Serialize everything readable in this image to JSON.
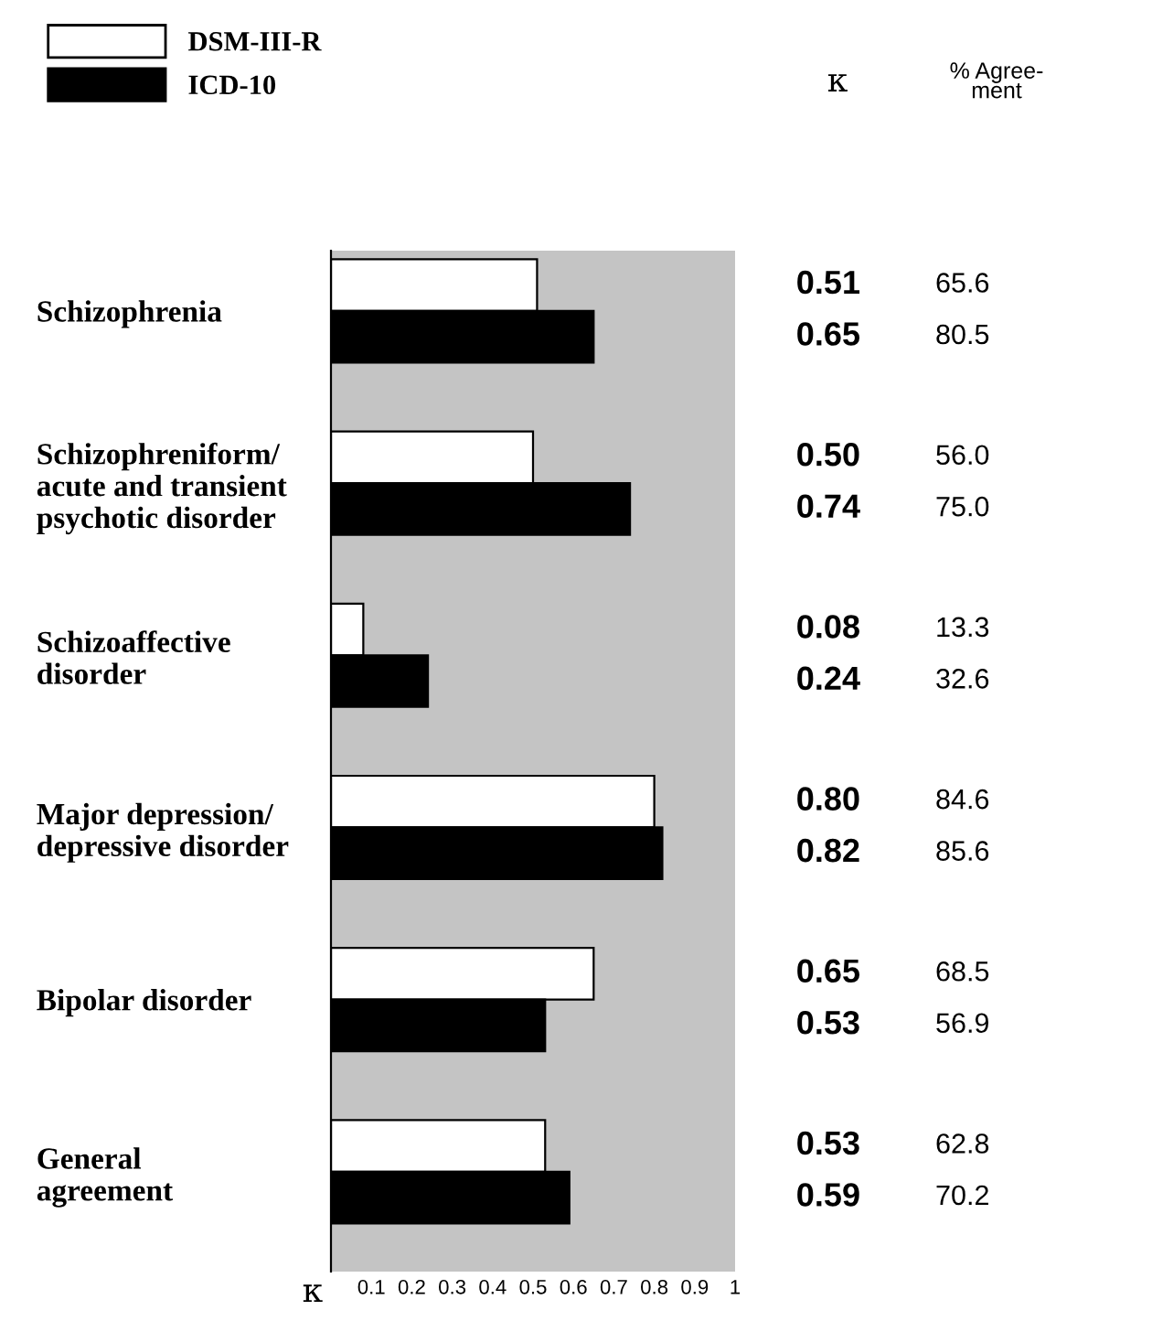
{
  "chart_data": {
    "type": "bar",
    "orientation": "horizontal",
    "categories": [
      "Schizophrenia",
      "Schizophreniform/\nacute and transient\npsychotic disorder",
      "Schizoaffective\ndisorder",
      "Major depression/\ndepressive disorder",
      "Bipolar disorder",
      "General\nagreement"
    ],
    "series": [
      {
        "name": "DSM-III-R",
        "color": "#ffffff",
        "values": [
          0.51,
          0.5,
          0.08,
          0.8,
          0.65,
          0.53
        ]
      },
      {
        "name": "ICD-10",
        "color": "#000000",
        "values": [
          0.65,
          0.74,
          0.24,
          0.82,
          0.53,
          0.59
        ]
      }
    ],
    "xlabel": "κ",
    "xlim": [
      0,
      1
    ],
    "xticks": [
      0.1,
      0.2,
      0.3,
      0.4,
      0.5,
      0.6,
      0.7,
      0.8,
      0.9,
      1
    ],
    "annotations": [
      "κ",
      "% Agree-\nment",
      "0.51",
      "65.6",
      "0.65",
      "80.5",
      "0.50",
      "56.0",
      "0.74",
      "75.0",
      "0.08",
      "13.3",
      "0.24",
      "32.6",
      "0.80",
      "84.6",
      "0.82",
      "85.6",
      "0.65",
      "68.5",
      "0.53",
      "56.9",
      "0.53",
      "62.8",
      "0.59",
      "70.2"
    ],
    "legend": "top left",
    "grid": false
  }
}
